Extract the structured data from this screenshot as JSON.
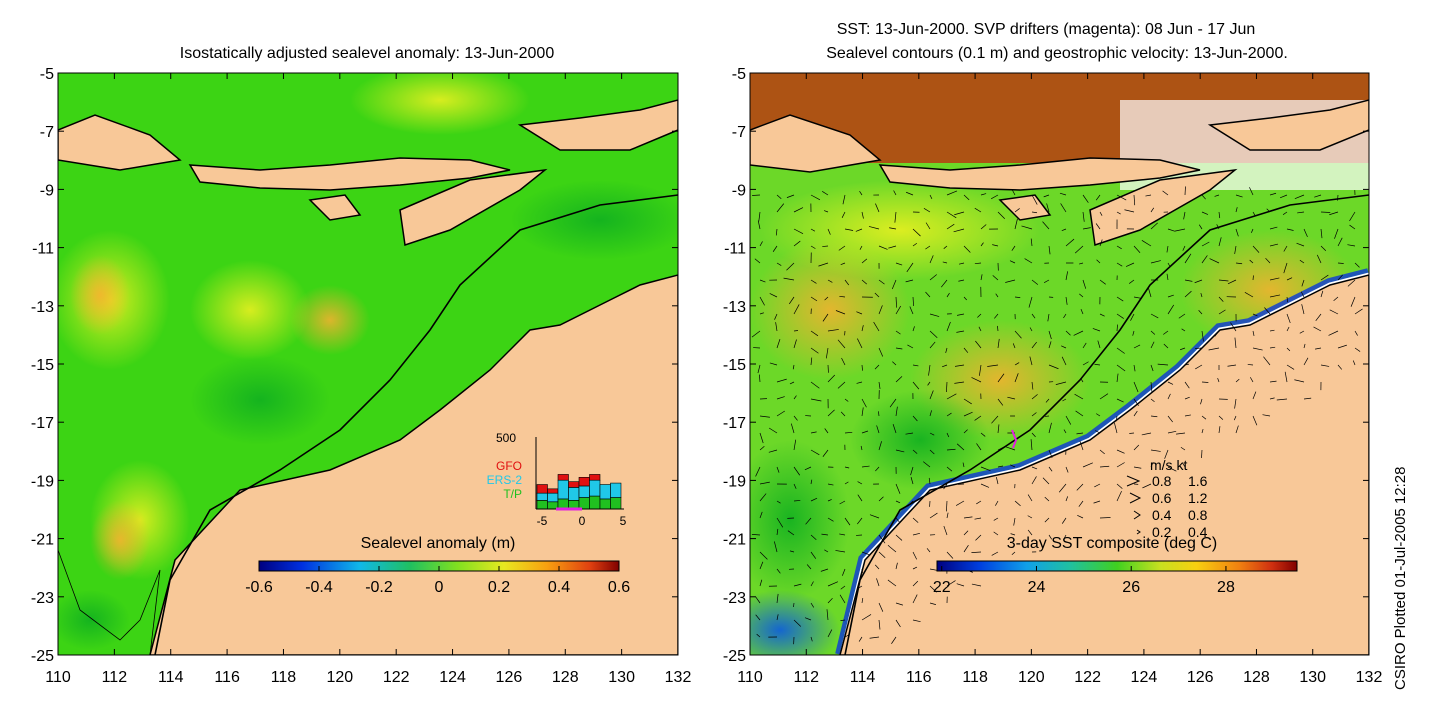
{
  "left_panel": {
    "title": "Isostatically adjusted sealevel anomaly: 13-Jun-2000",
    "colorbar": {
      "label": "Sealevel anomaly (m)",
      "ticks": [
        "-0.6",
        "-0.4",
        "-0.2",
        "0",
        "0.2",
        "0.4",
        "0.6"
      ],
      "range": [
        -0.6,
        0.6
      ]
    },
    "inset": {
      "ymax_label": "500",
      "legend": [
        "GFO",
        "ERS-2",
        "T/P"
      ],
      "legend_colors": [
        "#e01010",
        "#20c8e8",
        "#20c020"
      ],
      "xticks": [
        "-5",
        "0",
        "5"
      ],
      "bars": [
        {
          "tp": 60,
          "ers": 50,
          "gfo": 60
        },
        {
          "tp": 50,
          "ers": 60,
          "gfo": 30
        },
        {
          "tp": 70,
          "ers": 130,
          "gfo": 40
        },
        {
          "tp": 60,
          "ers": 90,
          "gfo": 40
        },
        {
          "tp": 80,
          "ers": 80,
          "gfo": 60
        },
        {
          "tp": 90,
          "ers": 110,
          "gfo": 40
        },
        {
          "tp": 70,
          "ers": 100,
          "gfo": 0
        },
        {
          "tp": 80,
          "ers": 100,
          "gfo": 0
        }
      ]
    }
  },
  "right_panel": {
    "title_line1": "SST: 13-Jun-2000. SVP drifters (magenta): 08 Jun - 17 Jun",
    "title_line2": "Sealevel contours (0.1 m) and geostrophic velocity: 13-Jun-2000.",
    "colorbar": {
      "label": "3-day SST composite (deg C)",
      "ticks": [
        "22",
        "24",
        "26",
        "28"
      ],
      "range": [
        21.9,
        29.5
      ]
    },
    "velocity_key": {
      "header": "m/s  kt",
      "rows": [
        {
          "ms": "0.8",
          "kt": "1.6"
        },
        {
          "ms": "0.6",
          "kt": "1.2"
        },
        {
          "ms": "0.4",
          "kt": "0.8"
        },
        {
          "ms": "0.2",
          "kt": "0.4"
        }
      ]
    }
  },
  "axes": {
    "lat_labels": [
      "-5",
      "-7",
      "-9",
      "-11",
      "-13",
      "-15",
      "-17",
      "-19",
      "-21",
      "-23",
      "-25"
    ],
    "lon_labels": [
      "110",
      "112",
      "114",
      "116",
      "118",
      "120",
      "122",
      "124",
      "126",
      "128",
      "130",
      "132"
    ],
    "lat_range": [
      -25,
      -5
    ],
    "lon_range": [
      110,
      132
    ]
  },
  "footer_note": "CSIRO Plotted 01-Jul-2005 12:28",
  "colors": {
    "land": "#f8c898",
    "ocean_green": "#22cc10",
    "shelf_line": "#000000"
  }
}
